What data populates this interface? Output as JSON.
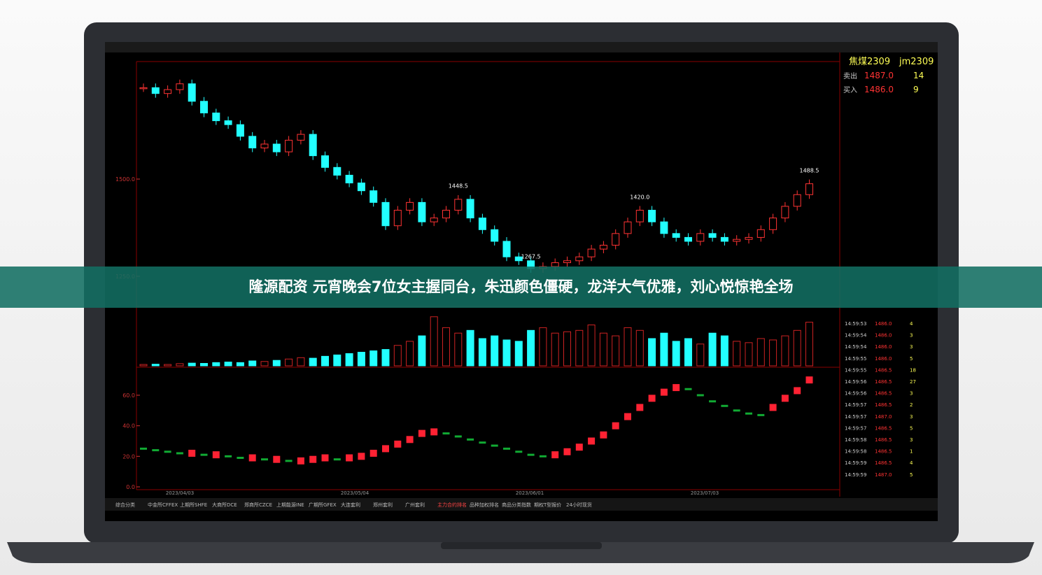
{
  "banner": "隆源配资 元宵晚会7位女主握同台，朱迅颜色僵硬，龙洋大气优雅，刘心悦惊艳全场",
  "screen": {
    "symbol": "焦煤2309",
    "code": "jm2309",
    "quote": [
      {
        "label": "卖出",
        "price": "1487.0",
        "qty": "14"
      },
      {
        "label": "买入",
        "price": "1486.0",
        "qty": "9"
      }
    ],
    "price_ticks": [
      {
        "value": 1500,
        "label": "1500.0"
      },
      {
        "value": 1250,
        "label": "1250.0"
      }
    ],
    "price_labels": [
      {
        "value": 1448.5,
        "label": "1448.5",
        "index": 26
      },
      {
        "value": 1420,
        "label": "1420.0",
        "index": 41
      },
      {
        "value": 1267.5,
        "label": "1267.5",
        "index": 32
      },
      {
        "value": 1488.5,
        "label": "1488.5",
        "index": 55
      }
    ],
    "closes": [
      1735,
      1720,
      1730,
      1745,
      1700,
      1670,
      1650,
      1640,
      1610,
      1580,
      1590,
      1570,
      1600,
      1615,
      1560,
      1530,
      1510,
      1490,
      1470,
      1440,
      1380,
      1420,
      1440,
      1390,
      1400,
      1420,
      1448,
      1400,
      1370,
      1340,
      1300,
      1290,
      1270,
      1275,
      1285,
      1290,
      1300,
      1320,
      1330,
      1360,
      1390,
      1420,
      1390,
      1360,
      1350,
      1340,
      1360,
      1350,
      1340,
      1345,
      1350,
      1370,
      1400,
      1430,
      1460,
      1488
    ],
    "volumes": [
      5,
      6,
      5,
      8,
      10,
      9,
      12,
      14,
      12,
      18,
      16,
      20,
      25,
      30,
      28,
      35,
      40,
      45,
      50,
      55,
      60,
      75,
      90,
      110,
      180,
      140,
      120,
      130,
      100,
      110,
      95,
      90,
      130,
      140,
      120,
      125,
      130,
      150,
      120,
      110,
      140,
      130,
      100,
      120,
      90,
      100,
      80,
      120,
      110,
      90,
      85,
      100,
      95,
      110,
      130,
      160
    ],
    "osc": [
      25,
      24,
      23,
      22,
      22,
      21,
      21,
      20,
      19,
      19,
      18,
      18,
      17,
      17,
      18,
      19,
      18,
      19,
      20,
      22,
      25,
      28,
      31,
      35,
      36,
      35,
      33,
      31,
      29,
      27,
      25,
      23,
      21,
      20,
      21,
      23,
      26,
      30,
      34,
      40,
      46,
      52,
      58,
      62,
      65,
      64,
      60,
      56,
      53,
      50,
      48,
      47,
      52,
      58,
      63,
      70
    ],
    "osc_ticks": [
      {
        "value": 60,
        "label": "60.0"
      },
      {
        "value": 40,
        "label": "40.0"
      },
      {
        "value": 20,
        "label": "20.0"
      },
      {
        "value": 0,
        "label": "0.0"
      }
    ],
    "dates": [
      "2023/04/03",
      "2023/05/04",
      "2023/06/01",
      "2023/07/03"
    ],
    "tabs": [
      "综合分类",
      "中金所CFFEX",
      "上期所SHFE",
      "大商所DCE",
      "郑商所CZCE",
      "上期能源INE",
      "广期所GFEX",
      "大连套利",
      "郑州套利",
      "广州套利",
      "主力合约排名",
      "品种加权排名",
      "商品分类指数",
      "期权T型报价",
      "24小时现货"
    ],
    "ticks": [
      {
        "time": "14:59:53",
        "price": "1486.0",
        "qty": "4"
      },
      {
        "time": "14:59:54",
        "price": "1486.0",
        "qty": "3"
      },
      {
        "time": "14:59:54",
        "price": "1486.0",
        "qty": "3"
      },
      {
        "time": "14:59:55",
        "price": "1486.0",
        "qty": "5"
      },
      {
        "time": "14:59:55",
        "price": "1486.5",
        "qty": "18"
      },
      {
        "time": "14:59:56",
        "price": "1486.5",
        "qty": "27"
      },
      {
        "time": "14:59:56",
        "price": "1486.5",
        "qty": "3"
      },
      {
        "time": "14:59:57",
        "price": "1486.5",
        "qty": "2"
      },
      {
        "time": "14:59:57",
        "price": "1487.0",
        "qty": "3"
      },
      {
        "time": "14:59:57",
        "price": "1486.5",
        "qty": "5"
      },
      {
        "time": "14:59:58",
        "price": "1486.5",
        "qty": "3"
      },
      {
        "time": "14:59:58",
        "price": "1486.5",
        "qty": "1"
      },
      {
        "time": "14:59:59",
        "price": "1486.5",
        "qty": "4"
      },
      {
        "time": "14:59:59",
        "price": "1487.0",
        "qty": "5"
      }
    ]
  }
}
